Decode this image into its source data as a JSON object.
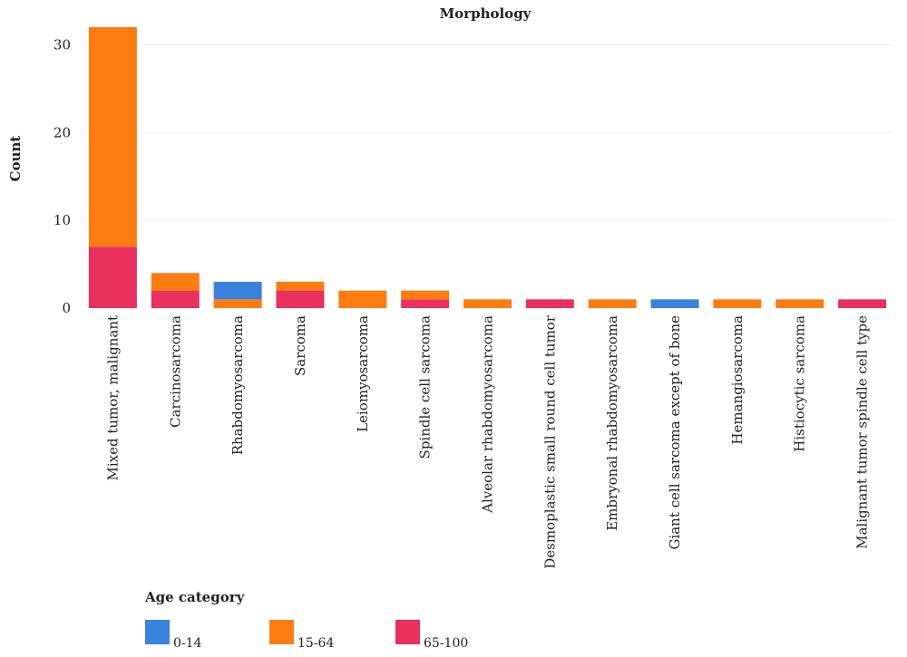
{
  "chart_data": {
    "type": "bar",
    "stacked": true,
    "title": "Morphology",
    "xlabel": "",
    "ylabel": "Count",
    "ylim": [
      0,
      32
    ],
    "yticks": [
      0,
      10,
      20,
      30
    ],
    "grid": true,
    "legend_placement": "bottom-left",
    "categories": [
      "Mixed tumor, malignant",
      "Carcinosarcoma",
      "Rhabdomyosarcoma",
      "Sarcoma",
      "Leiomyosarcoma",
      "Spindle cell sarcoma",
      "Alveolar rhabdomyosarcoma",
      "Desmoplastic small round cell tumor",
      "Embryonal rhabdomyosarcoma",
      "Giant cell sarcoma except of bone",
      "Hemangiosarcoma",
      "Histiocytic sarcoma",
      "Malignant tumor spindle cell type"
    ],
    "series": [
      {
        "name": "65-100",
        "color": "#e8315f",
        "values": [
          7,
          2,
          0,
          2,
          0,
          1,
          0,
          1,
          0,
          0,
          0,
          0,
          1
        ]
      },
      {
        "name": "15-64",
        "color": "#fb7d12",
        "values": [
          25,
          2,
          1,
          1,
          2,
          1,
          1,
          0,
          1,
          0,
          1,
          1,
          0
        ]
      },
      {
        "name": "0-14",
        "color": "#3b82dc",
        "values": [
          0,
          0,
          2,
          0,
          0,
          0,
          0,
          0,
          0,
          1,
          0,
          0,
          0
        ]
      }
    ]
  },
  "legend": {
    "title": "Age category",
    "items": [
      {
        "label": "0-14",
        "color": "#3b82dc"
      },
      {
        "label": "15-64",
        "color": "#fb7d12"
      },
      {
        "label": "65-100",
        "color": "#e8315f"
      }
    ]
  }
}
